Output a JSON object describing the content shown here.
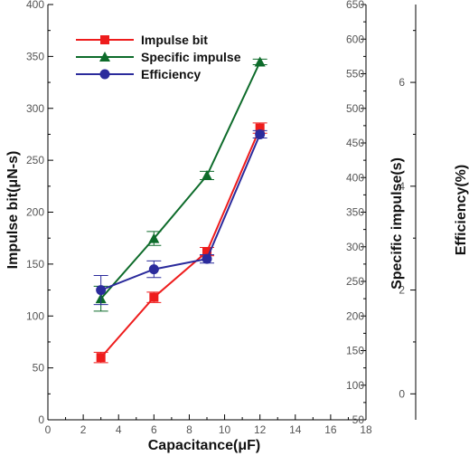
{
  "chart_data": {
    "type": "line",
    "x": [
      3,
      6,
      9,
      12
    ],
    "xlabel": "Capacitance(μF)",
    "xlim": [
      0,
      18
    ],
    "xticks": [
      "0",
      "2",
      "4",
      "6",
      "8",
      "10",
      "12",
      "14",
      "16",
      "18"
    ],
    "axes": {
      "left": {
        "label": "Impulse bit(μN-s)",
        "lim": [
          0,
          400
        ],
        "ticks": [
          "0",
          "50",
          "100",
          "150",
          "200",
          "250",
          "300",
          "350",
          "400"
        ]
      },
      "right1": {
        "label": "Specific impulse(s)",
        "lim": [
          50,
          650
        ],
        "ticks": [
          "50",
          "100",
          "150",
          "200",
          "250",
          "300",
          "350",
          "400",
          "450",
          "500",
          "550",
          "600",
          "650"
        ]
      },
      "right2": {
        "label": "Efficiency(%)",
        "lim": [
          -0.5,
          7.5
        ],
        "ticks": [
          "0",
          "2",
          "4",
          "6"
        ]
      }
    },
    "series": [
      {
        "name": "Impulse bit",
        "axis": "left",
        "color": "#ee1c1c",
        "marker": "square",
        "values": [
          60,
          118,
          162,
          281
        ],
        "error": [
          5,
          5,
          4,
          5
        ]
      },
      {
        "name": "Specific impulse",
        "axis": "right1",
        "color": "#0d6b2a",
        "marker": "triangle",
        "values": [
          225,
          312,
          403,
          567
        ],
        "error": [
          18,
          10,
          6,
          4
        ]
      },
      {
        "name": "Efficiency",
        "axis": "right2",
        "color": "#2b2b9c",
        "marker": "circle",
        "values": [
          2.0,
          2.4,
          2.6,
          5.0
        ],
        "error": [
          0.28,
          0.16,
          0.08,
          0.07
        ]
      }
    ],
    "legend_position": "top-left",
    "grid": false
  }
}
